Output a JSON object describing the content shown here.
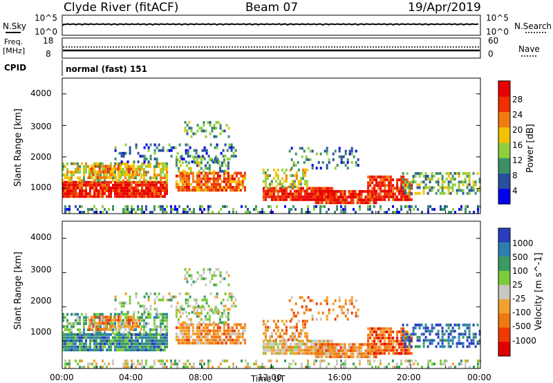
{
  "header": {
    "station": "Clyde River (fitACF)",
    "beam": "Beam 07",
    "date": "19/Apr/2019"
  },
  "top_panels": {
    "nsky_label": "N.Sky",
    "nsearch_label": "N.Search",
    "noise_ticks": [
      "10^5",
      "10^0"
    ],
    "freq_label_line1": "Freq.",
    "freq_label_line2": "[MHz]",
    "freq_ticks": [
      "18",
      "8"
    ],
    "nave_label": "Nave",
    "nave_ticks": [
      "60",
      "0"
    ],
    "cpid_label": "CPID",
    "cpid_text": "normal (fast) 151"
  },
  "colors": {
    "power_scale": [
      "#0000ee",
      "#2a4fa0",
      "#3d8f6a",
      "#8fcf3f",
      "#f2c200",
      "#f07c10",
      "#f03000",
      "#e80000"
    ],
    "velocity_scale": [
      "#2a3fc0",
      "#2e7fb0",
      "#3a9a60",
      "#7acc3a",
      "#c8c8c0",
      "#f2a030",
      "#f07810",
      "#f03a00",
      "#e00000"
    ]
  },
  "chart_data": [
    {
      "type": "heatmap",
      "title": "Power",
      "ylabel": "Slant Range [km]",
      "ylim": [
        200,
        4500
      ],
      "yticks": [
        "4000",
        "3000",
        "2000",
        "1000"
      ],
      "xlim_hours": [
        0,
        24
      ],
      "colorbar_label": "Power [dB]",
      "colorbar_ticks": [
        "28",
        "24",
        "20",
        "16",
        "12",
        "8",
        "4"
      ]
    },
    {
      "type": "heatmap",
      "title": "Velocity",
      "xlabel": "Time UT",
      "ylabel": "Slant Range [km]",
      "ylim": [
        200,
        4500
      ],
      "yticks": [
        "4000",
        "3000",
        "2000",
        "1000"
      ],
      "xticks": [
        "00:00",
        "04:00",
        "08:00",
        "12:00",
        "16:00",
        "20:00",
        "00:00"
      ],
      "colorbar_label": "Velocity [m s^-1]",
      "colorbar_ticks": [
        "1000",
        "500",
        "100",
        "25",
        "-25",
        "-100",
        "-500",
        "-1000"
      ]
    }
  ]
}
